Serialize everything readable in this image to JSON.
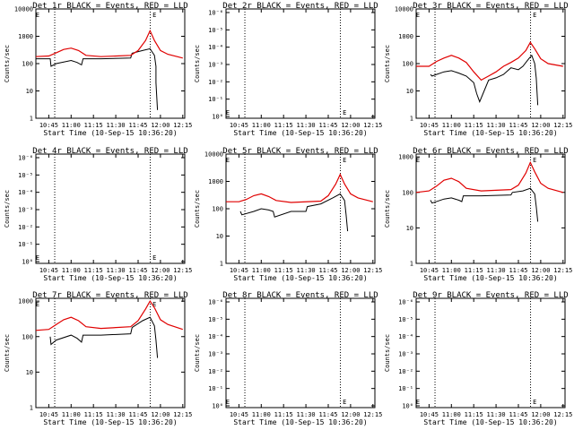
{
  "figure": {
    "xlabel": "Start Time (10-Sep-15 10:36:20)",
    "ylabel": "Counts/sec",
    "x_ticks": [
      "10:45",
      "11:00",
      "11:15",
      "11:30",
      "11:45",
      "12:00",
      "12:15"
    ],
    "marker_label": "E"
  },
  "chart_data": [
    {
      "type": "line",
      "title": "Det 1r BLACK = Events, RED = LLD",
      "y_scale": "log",
      "y_ticks": [
        "1",
        "10",
        "100",
        "1000",
        "10000"
      ],
      "ylim": [
        1,
        10000
      ],
      "xlim": [
        "10:36:20",
        "12:16:20"
      ],
      "vlines": [
        "10:49:00",
        "11:53:10"
      ],
      "marker_at": [
        "10:37:30",
        "11:56:00"
      ],
      "series": [
        {
          "color": "#000000",
          "x": [
            "10:36:20",
            "10:46:00",
            "10:46:30",
            "10:50",
            "11:00",
            "11:04",
            "11:07",
            "11:08",
            "11:20",
            "11:40",
            "11:41",
            "11:48",
            "11:53",
            "11:56",
            "11:57",
            "11:57",
            "11:58"
          ],
          "y": [
            150,
            150,
            80,
            100,
            130,
            110,
            90,
            150,
            150,
            160,
            240,
            300,
            350,
            200,
            80,
            20,
            2
          ]
        },
        {
          "color": "#e00000",
          "x": [
            "10:36:20",
            "10:45",
            "10:50",
            "10:55",
            "11:00",
            "11:05",
            "11:10",
            "11:20",
            "11:40",
            "11:45",
            "11:50",
            "11:53",
            "11:56",
            "12:00",
            "12:05",
            "12:15"
          ],
          "y": [
            180,
            190,
            250,
            330,
            370,
            300,
            200,
            180,
            200,
            300,
            700,
            1600,
            700,
            300,
            220,
            160
          ]
        }
      ]
    },
    {
      "type": "line",
      "title": "Det 2r BLACK = Events, RED = LLD",
      "y_scale": "log",
      "y_ticks": [
        "10⁰",
        "10⁻¹",
        "10⁻²",
        "10⁻³",
        "10⁻⁴",
        "10⁻⁵",
        "10⁻⁶"
      ],
      "ylim": [
        0.9,
        1.000001
      ],
      "xlim": [
        "10:36:20",
        "12:16:20"
      ],
      "vlines": [
        "10:49:00",
        "11:53:10"
      ],
      "marker_at": [
        "10:37:30",
        "11:56:00"
      ],
      "series": []
    },
    {
      "type": "line",
      "title": "Det 3r BLACK = Events, RED = LLD",
      "y_scale": "log",
      "y_ticks": [
        "1",
        "10",
        "100",
        "1000",
        "10000"
      ],
      "ylim": [
        1,
        10000
      ],
      "xlim": [
        "10:36:20",
        "12:16:20"
      ],
      "vlines": [
        "10:49:00",
        "11:53:10"
      ],
      "marker_at": [
        "10:37:30",
        "11:56:00"
      ],
      "series": [
        {
          "color": "#000000",
          "x": [
            "10:46:00",
            "10:47",
            "10:55",
            "11:00",
            "11:05",
            "11:10",
            "11:15",
            "11:17",
            "11:19",
            "11:22",
            "11:25",
            "11:30",
            "11:35",
            "11:40",
            "11:45",
            "11:48",
            "11:52",
            "11:54",
            "11:56",
            "11:57",
            "11:58"
          ],
          "y": [
            40,
            35,
            50,
            55,
            45,
            35,
            20,
            8,
            4,
            10,
            25,
            30,
            40,
            70,
            60,
            80,
            150,
            200,
            100,
            30,
            3
          ]
        },
        {
          "color": "#e00000",
          "x": [
            "10:36:20",
            "10:45",
            "10:50",
            "10:55",
            "11:00",
            "11:05",
            "11:10",
            "11:15",
            "11:20",
            "11:25",
            "11:30",
            "11:35",
            "11:40",
            "11:45",
            "11:50",
            "11:53",
            "11:56",
            "12:00",
            "12:05",
            "12:15"
          ],
          "y": [
            80,
            80,
            120,
            160,
            200,
            160,
            110,
            50,
            25,
            35,
            50,
            80,
            110,
            160,
            300,
            600,
            350,
            150,
            100,
            80
          ]
        }
      ]
    },
    {
      "type": "line",
      "title": "Det 4r BLACK = Events, RED = LLD",
      "y_scale": "log",
      "y_ticks": [
        "10⁰",
        "10⁻¹",
        "10⁻²",
        "10⁻³",
        "10⁻⁴",
        "10⁻⁵",
        "10⁻⁶"
      ],
      "ylim": [
        0.9,
        1.000001
      ],
      "xlim": [
        "10:36:20",
        "12:16:20"
      ],
      "vlines": [
        "10:49:00",
        "11:53:10"
      ],
      "marker_at": [
        "10:37:30",
        "11:56:00"
      ],
      "series": []
    },
    {
      "type": "line",
      "title": "Det 5r BLACK = Events, RED = LLD",
      "y_scale": "log",
      "y_ticks": [
        "1",
        "10",
        "100",
        "1000",
        "10000"
      ],
      "ylim": [
        1,
        10000
      ],
      "xlim": [
        "10:36:20",
        "12:16:20"
      ],
      "vlines": [
        "10:49:00",
        "11:53:10"
      ],
      "marker_at": [
        "10:37:30",
        "11:56:00"
      ],
      "series": [
        {
          "color": "#000000",
          "x": [
            "10:46:00",
            "10:47",
            "10:55",
            "11:00",
            "11:05",
            "11:08",
            "11:09",
            "11:20",
            "11:30",
            "11:31",
            "11:40",
            "11:48",
            "11:53",
            "11:56",
            "11:57",
            "11:58"
          ],
          "y": [
            80,
            60,
            80,
            100,
            90,
            80,
            50,
            80,
            80,
            120,
            150,
            250,
            350,
            200,
            60,
            15
          ]
        },
        {
          "color": "#e00000",
          "x": [
            "10:36:20",
            "10:45",
            "10:50",
            "10:55",
            "11:00",
            "11:05",
            "11:10",
            "11:20",
            "11:40",
            "11:45",
            "11:50",
            "11:53",
            "11:56",
            "12:00",
            "12:05",
            "12:15"
          ],
          "y": [
            180,
            180,
            220,
            300,
            350,
            280,
            200,
            170,
            190,
            300,
            800,
            1800,
            800,
            350,
            250,
            180
          ]
        }
      ]
    },
    {
      "type": "line",
      "title": "Det 6r BLACK = Events, RED = LLD",
      "y_scale": "log",
      "y_ticks": [
        "1",
        "10",
        "100",
        "1000"
      ],
      "ylim": [
        1,
        1200
      ],
      "xlim": [
        "10:36:20",
        "12:16:20"
      ],
      "vlines": [
        "10:49:00",
        "11:53:10"
      ],
      "marker_at": [
        "10:37:30",
        "11:56:00"
      ],
      "series": [
        {
          "color": "#000000",
          "x": [
            "10:46:00",
            "10:47",
            "10:55",
            "11:00",
            "11:05",
            "11:07",
            "11:08",
            "11:20",
            "11:40",
            "11:41",
            "11:48",
            "11:53",
            "11:56",
            "11:57",
            "11:58"
          ],
          "y": [
            60,
            50,
            65,
            70,
            60,
            55,
            80,
            80,
            85,
            100,
            110,
            130,
            90,
            40,
            15
          ]
        },
        {
          "color": "#e00000",
          "x": [
            "10:36:20",
            "10:45",
            "10:50",
            "10:55",
            "11:00",
            "11:05",
            "11:10",
            "11:20",
            "11:40",
            "11:45",
            "11:50",
            "11:53",
            "11:56",
            "12:00",
            "12:05",
            "12:15"
          ],
          "y": [
            100,
            110,
            150,
            220,
            250,
            200,
            130,
            110,
            120,
            160,
            350,
            700,
            380,
            180,
            130,
            100
          ]
        }
      ]
    },
    {
      "type": "line",
      "title": "Det 7r BLACK = Events, RED = LLD",
      "y_scale": "log",
      "y_ticks": [
        "1",
        "10",
        "100",
        "1000"
      ],
      "ylim": [
        1,
        1200
      ],
      "xlim": [
        "10:36:20",
        "12:16:20"
      ],
      "vlines": [
        "10:49:00",
        "11:53:10"
      ],
      "marker_at": [
        "10:37:30",
        "11:56:00"
      ],
      "series": [
        {
          "color": "#000000",
          "x": [
            "10:46:00",
            "10:46:30",
            "10:50",
            "11:00",
            "11:04",
            "11:07",
            "11:08",
            "11:20",
            "11:40",
            "11:41",
            "11:48",
            "11:53",
            "11:56",
            "11:57",
            "11:58"
          ],
          "y": [
            100,
            60,
            80,
            110,
            90,
            70,
            110,
            110,
            120,
            180,
            280,
            350,
            200,
            80,
            25
          ]
        },
        {
          "color": "#e00000",
          "x": [
            "10:36:20",
            "10:45",
            "10:50",
            "10:55",
            "11:00",
            "11:05",
            "11:10",
            "11:20",
            "11:40",
            "11:45",
            "11:50",
            "11:53",
            "11:56",
            "12:00",
            "12:05",
            "12:15"
          ],
          "y": [
            150,
            160,
            220,
            300,
            350,
            280,
            190,
            170,
            190,
            280,
            600,
            1000,
            650,
            300,
            220,
            160
          ]
        }
      ]
    },
    {
      "type": "line",
      "title": "Det 8r BLACK = Events, RED = LLD",
      "y_scale": "log",
      "y_ticks": [
        "10⁰",
        "10⁻¹",
        "10⁻²",
        "10⁻³",
        "10⁻⁴",
        "10⁻⁵",
        "10⁻⁶"
      ],
      "ylim": [
        0.9,
        1.000001
      ],
      "xlim": [
        "10:36:20",
        "12:16:20"
      ],
      "vlines": [
        "10:49:00",
        "11:53:10"
      ],
      "marker_at": [
        "10:37:30",
        "11:56:00"
      ],
      "series": []
    },
    {
      "type": "line",
      "title": "Det 9r BLACK = Events, RED = LLD",
      "y_scale": "log",
      "y_ticks": [
        "10⁰",
        "10⁻¹",
        "10⁻²",
        "10⁻³",
        "10⁻⁴",
        "10⁻⁵",
        "10⁻⁶"
      ],
      "ylim": [
        0.9,
        1.000001
      ],
      "xlim": [
        "10:36:20",
        "12:16:20"
      ],
      "vlines": [
        "10:49:00",
        "11:53:10"
      ],
      "marker_at": [
        "10:37:30",
        "11:56:00"
      ],
      "series": []
    }
  ]
}
